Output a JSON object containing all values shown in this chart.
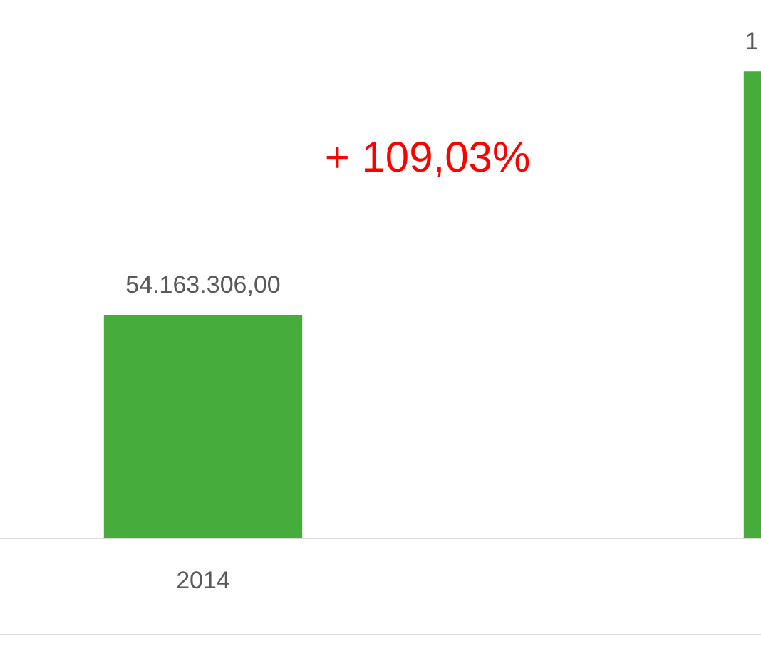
{
  "chart_data": {
    "type": "bar",
    "categories": [
      "2014",
      null
    ],
    "values": [
      54163306,
      113217559
    ],
    "value_labels": [
      "54.163.306,00",
      null
    ],
    "color": "#46ad3c",
    "annotations": [
      "+ 109,03%",
      "1"
    ],
    "grid": false,
    "legend": false
  }
}
